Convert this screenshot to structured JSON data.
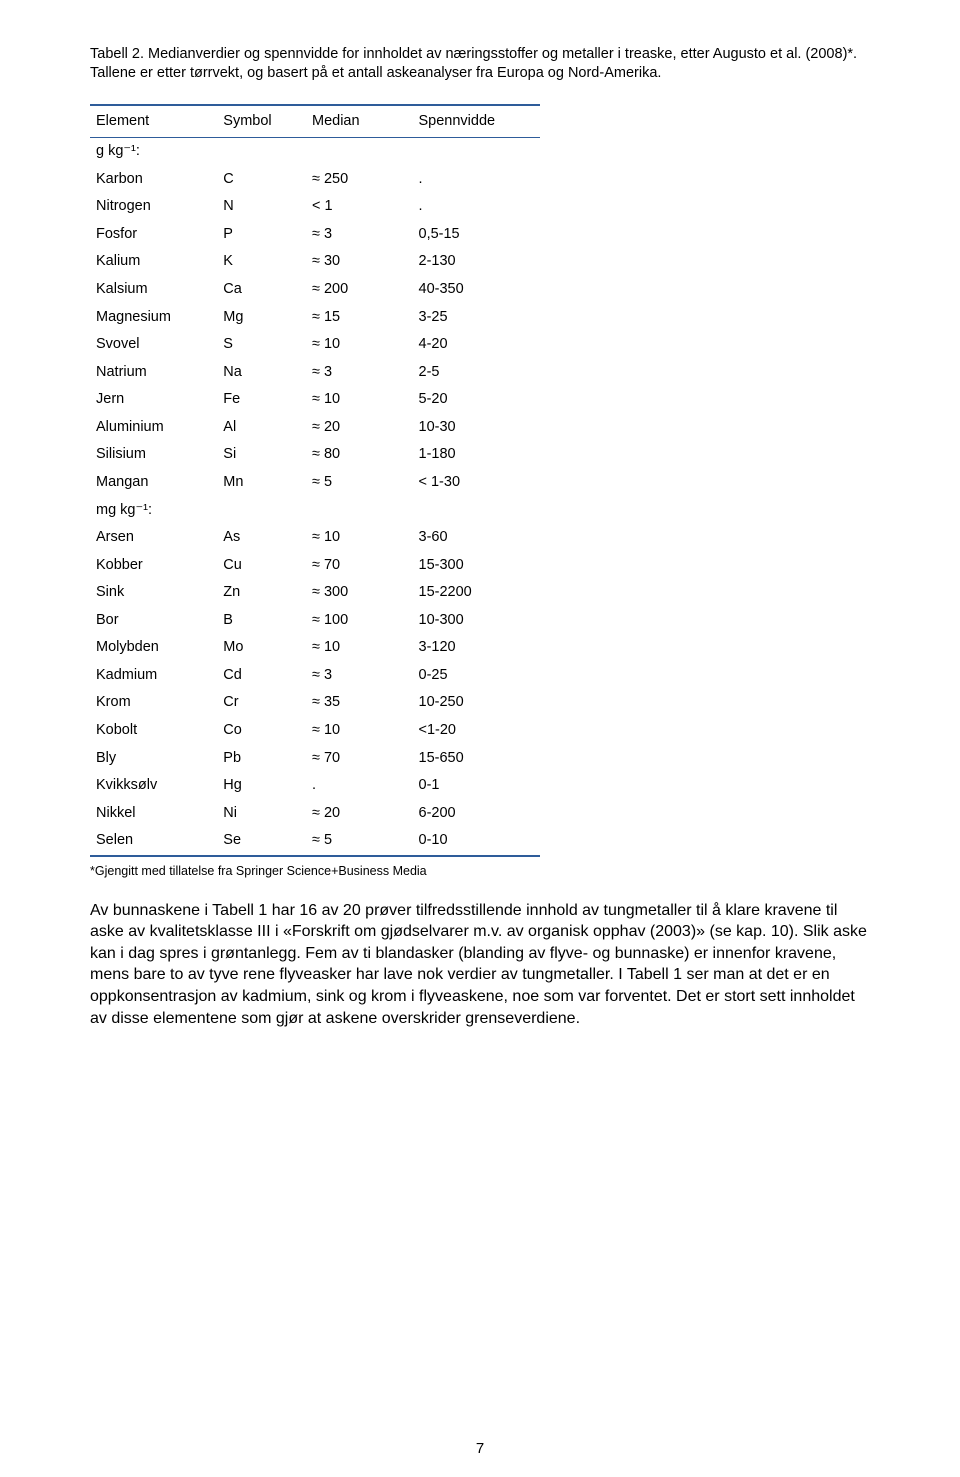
{
  "caption": "Tabell 2. Medianverdier og spennvidde for innholdet av næringsstoffer og metaller i treaske, etter Augusto et al. (2008)*. Tallene er etter tørrvekt, og basert på et antall askeanalyser fra Europa og Nord-Amerika.",
  "table": {
    "columns": [
      "Element",
      "Symbol",
      "Median",
      "Spennvidde"
    ],
    "col_widths": [
      "120px",
      "80px",
      "100px",
      "120px"
    ],
    "rule_color": "#2e5c9a",
    "header_fontsize": 14.5,
    "body_fontsize": 14.5,
    "rows": [
      {
        "unit": true,
        "cells": [
          "g kg⁻¹:",
          "",
          "",
          ""
        ]
      },
      {
        "cells": [
          "Karbon",
          "C",
          "≈ 250",
          "."
        ]
      },
      {
        "cells": [
          "Nitrogen",
          "N",
          "< 1",
          "."
        ]
      },
      {
        "cells": [
          "Fosfor",
          "P",
          "≈ 3",
          "0,5-15"
        ]
      },
      {
        "cells": [
          "Kalium",
          "K",
          "≈ 30",
          "2-130"
        ]
      },
      {
        "cells": [
          "Kalsium",
          "Ca",
          "≈ 200",
          "40-350"
        ]
      },
      {
        "cells": [
          "Magnesium",
          "Mg",
          "≈ 15",
          "3-25"
        ]
      },
      {
        "cells": [
          "Svovel",
          "S",
          "≈ 10",
          "4-20"
        ]
      },
      {
        "cells": [
          "Natrium",
          "Na",
          "≈ 3",
          "2-5"
        ]
      },
      {
        "cells": [
          "Jern",
          "Fe",
          "≈ 10",
          "5-20"
        ]
      },
      {
        "cells": [
          "Aluminium",
          "Al",
          "≈ 20",
          "10-30"
        ]
      },
      {
        "cells": [
          "Silisium",
          "Si",
          "≈ 80",
          "1-180"
        ]
      },
      {
        "cells": [
          "Mangan",
          "Mn",
          "≈ 5",
          "< 1-30"
        ]
      },
      {
        "unit": true,
        "cells": [
          "mg kg⁻¹:",
          "",
          "",
          ""
        ]
      },
      {
        "cells": [
          "Arsen",
          "As",
          "≈ 10",
          "3-60"
        ]
      },
      {
        "cells": [
          "Kobber",
          "Cu",
          "≈ 70",
          "15-300"
        ]
      },
      {
        "cells": [
          "Sink",
          "Zn",
          "≈ 300",
          "15-2200"
        ]
      },
      {
        "cells": [
          "Bor",
          "B",
          "≈ 100",
          "10-300"
        ]
      },
      {
        "cells": [
          "Molybden",
          "Mo",
          "≈ 10",
          "3-120"
        ]
      },
      {
        "cells": [
          "Kadmium",
          "Cd",
          "≈ 3",
          "0-25"
        ]
      },
      {
        "cells": [
          "Krom",
          "Cr",
          "≈ 35",
          "10-250"
        ]
      },
      {
        "cells": [
          "Kobolt",
          "Co",
          "≈ 10",
          "<1-20"
        ]
      },
      {
        "cells": [
          "Bly",
          "Pb",
          "≈ 70",
          "15-650"
        ]
      },
      {
        "cells": [
          "Kvikksølv",
          "Hg",
          ".",
          "0-1"
        ]
      },
      {
        "cells": [
          "Nikkel",
          "Ni",
          "≈ 20",
          "6-200"
        ]
      },
      {
        "cells": [
          "Selen",
          "Se",
          "≈ 5",
          "0-10"
        ]
      }
    ]
  },
  "footnote": "*Gjengitt med tillatelse fra Springer Science+Business Media",
  "paragraph": "Av bunnaskene i Tabell 1 har 16 av 20 prøver tilfredsstillende innhold av tungmetaller til å klare kravene til aske av kvalitetsklasse III i «Forskrift om gjødselvarer m.v. av organisk opphav (2003)» (se kap. 10). Slik aske kan i dag spres i grøntanlegg. Fem av ti blandasker (blanding av flyve- og bunnaske) er innenfor kravene, mens bare to av tyve rene flyveasker har lave nok verdier av tungmetaller. I Tabell 1 ser man at det er en oppkonsentrasjon av kadmium, sink og krom i flyveaskene, noe som var forventet. Det er stort sett innholdet av disse elementene som gjør at askene overskrider grenseverdiene.",
  "page_number": "7",
  "colors": {
    "text": "#000000",
    "background": "#ffffff",
    "rule": "#2e5c9a"
  },
  "fonts": {
    "family": "Arial, Helvetica, sans-serif",
    "caption_size_pt": 11,
    "table_size_pt": 11,
    "footnote_size_pt": 9.5,
    "paragraph_size_pt": 12
  }
}
